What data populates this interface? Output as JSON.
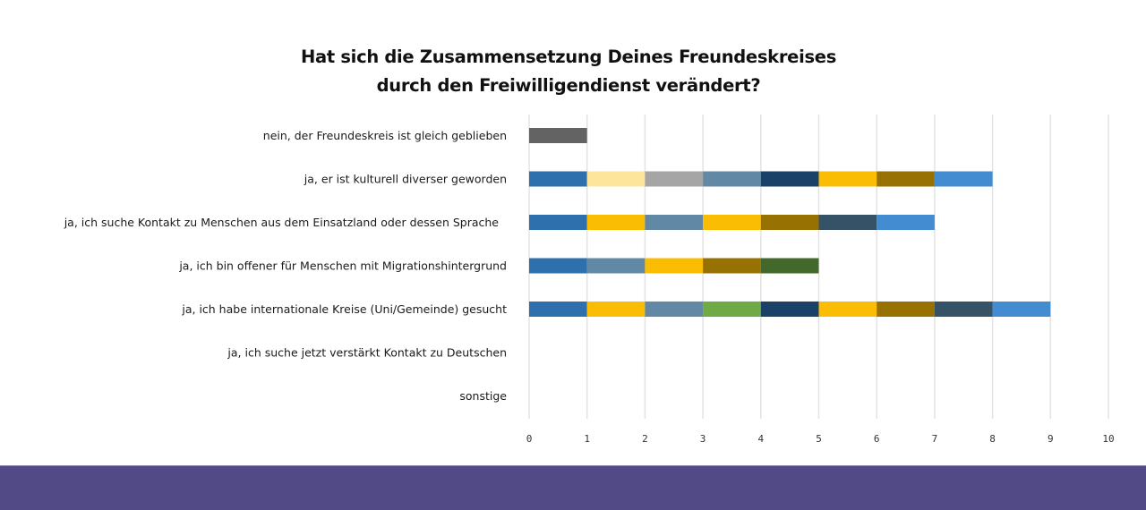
{
  "chart_data": {
    "type": "bar",
    "orientation": "horizontal",
    "stacked": true,
    "title": [
      "Hat sich die Zusammensetzung Deines Freundeskreises",
      "durch den Freiwilligendienst verändert?"
    ],
    "xlabel": "",
    "ylabel": "",
    "xlim": [
      0,
      10
    ],
    "x_ticks": [
      "0",
      "1",
      "2",
      "3",
      "4",
      "5",
      "6",
      "7",
      "8",
      "9",
      "10"
    ],
    "grid": true,
    "legend": "none",
    "categories": [
      "nein, der Freundeskreis ist gleich geblieben",
      "ja, er ist kulturell diverser geworden",
      "ja, ich suche Kontakt zu Menschen aus dem Einsatzland oder dessen Sprache",
      "ja, ich bin offener für Menschen mit Migrationshintergrund",
      "ja, ich habe internationale Kreise (Uni/Gemeinde) gesucht",
      "ja, ich suche jetzt verstärkt Kontakt zu Deutschen",
      "sonstige"
    ],
    "totals": [
      1,
      8,
      7,
      5,
      9,
      0,
      0
    ],
    "segments": [
      [
        {
          "value": 1,
          "color": "#636363"
        }
      ],
      [
        {
          "value": 1,
          "color": "#2e6fad"
        },
        {
          "value": 1,
          "color": "#fde59b"
        },
        {
          "value": 1,
          "color": "#a5a5a5"
        },
        {
          "value": 1,
          "color": "#6189a6"
        },
        {
          "value": 1,
          "color": "#1a4268"
        },
        {
          "value": 1,
          "color": "#fbbc04"
        },
        {
          "value": 1,
          "color": "#977101"
        },
        {
          "value": 1,
          "color": "#438cd1"
        }
      ],
      [
        {
          "value": 1,
          "color": "#2e6fad"
        },
        {
          "value": 1,
          "color": "#fbbc04"
        },
        {
          "value": 1,
          "color": "#6189a6"
        },
        {
          "value": 1,
          "color": "#fbbc04"
        },
        {
          "value": 1,
          "color": "#977101"
        },
        {
          "value": 1,
          "color": "#365266"
        },
        {
          "value": 1,
          "color": "#438cd1"
        }
      ],
      [
        {
          "value": 1,
          "color": "#2e6fad"
        },
        {
          "value": 1,
          "color": "#6189a6"
        },
        {
          "value": 1,
          "color": "#fbbc04"
        },
        {
          "value": 1,
          "color": "#977101"
        },
        {
          "value": 1,
          "color": "#43682b"
        }
      ],
      [
        {
          "value": 1,
          "color": "#2e6fad"
        },
        {
          "value": 1,
          "color": "#fbbc04"
        },
        {
          "value": 1,
          "color": "#6189a6"
        },
        {
          "value": 1,
          "color": "#6eab45"
        },
        {
          "value": 1,
          "color": "#1a4268"
        },
        {
          "value": 1,
          "color": "#fbbc04"
        },
        {
          "value": 1,
          "color": "#977101"
        },
        {
          "value": 1,
          "color": "#365266"
        },
        {
          "value": 1,
          "color": "#438cd1"
        }
      ],
      [],
      []
    ]
  },
  "colors": {
    "gridline": "#e3e3e3",
    "footer_band": "#514a87"
  }
}
